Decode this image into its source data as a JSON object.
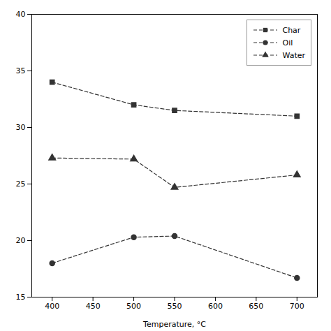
{
  "chart_data": {
    "type": "line",
    "xlabel": "Temperature, °C",
    "x": [
      400,
      500,
      550,
      700
    ],
    "series": [
      {
        "name": "Char",
        "color": "#333333",
        "marker": "square",
        "values": [
          34.0,
          32.0,
          31.5,
          31.0
        ]
      },
      {
        "name": "Oil",
        "color": "#333333",
        "marker": "circle",
        "values": [
          18.0,
          20.3,
          20.4,
          16.7
        ]
      },
      {
        "name": "Water",
        "color": "#333333",
        "marker": "triangle",
        "values": [
          27.3,
          27.2,
          24.7,
          25.8
        ]
      }
    ],
    "line_style": "dashed",
    "xlim": [
      375,
      725
    ],
    "ylim": [
      15,
      40
    ],
    "xticks": [
      400,
      450,
      500,
      550,
      600,
      650,
      700
    ],
    "yticks": [
      15,
      20,
      25,
      30,
      35,
      40
    ],
    "grid": false,
    "legend": "upper right"
  }
}
